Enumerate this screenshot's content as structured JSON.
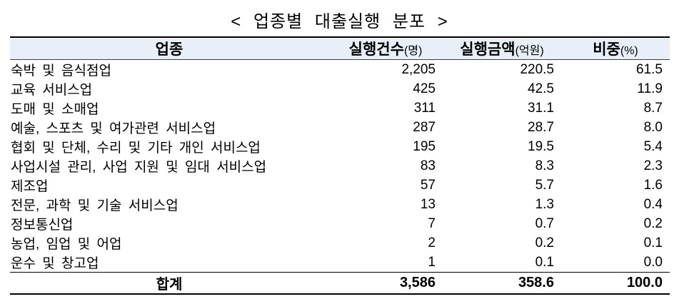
{
  "title": "< 업종별 대출실행 분포 >",
  "colors": {
    "header_bg": "#e9eff7",
    "border": "#000000",
    "text": "#000000"
  },
  "table": {
    "columns": [
      {
        "label": "업종",
        "unit": ""
      },
      {
        "label": "실행건수",
        "unit": "(명)"
      },
      {
        "label": "실행금액",
        "unit": "(억원)"
      },
      {
        "label": "비중",
        "unit": "(%)"
      }
    ],
    "rows": [
      [
        "숙박 및 음식점업",
        "2,205",
        "220.5",
        "61.5"
      ],
      [
        "교육 서비스업",
        "425",
        "42.5",
        "11.9"
      ],
      [
        "도매 및 소매업",
        "311",
        "31.1",
        "8.7"
      ],
      [
        "예술, 스포츠 및 여가관련 서비스업",
        "287",
        "28.7",
        "8.0"
      ],
      [
        "협회 및 단체, 수리 및 기타 개인 서비스업",
        "195",
        "19.5",
        "5.4"
      ],
      [
        "사업시설 관리, 사업 지원 및 임대 서비스업",
        "83",
        "8.3",
        "2.3"
      ],
      [
        "제조업",
        "57",
        "5.7",
        "1.6"
      ],
      [
        "전문, 과학 및 기술 서비스업",
        "13",
        "1.3",
        "0.4"
      ],
      [
        "정보통신업",
        "7",
        "0.7",
        "0.2"
      ],
      [
        "농업, 임업 및 어업",
        "2",
        "0.2",
        "0.1"
      ],
      [
        "운수 및 창고업",
        "1",
        "0.1",
        "0.0"
      ]
    ],
    "total": {
      "label": "합계",
      "values": [
        "3,586",
        "358.6",
        "100.0"
      ]
    }
  }
}
